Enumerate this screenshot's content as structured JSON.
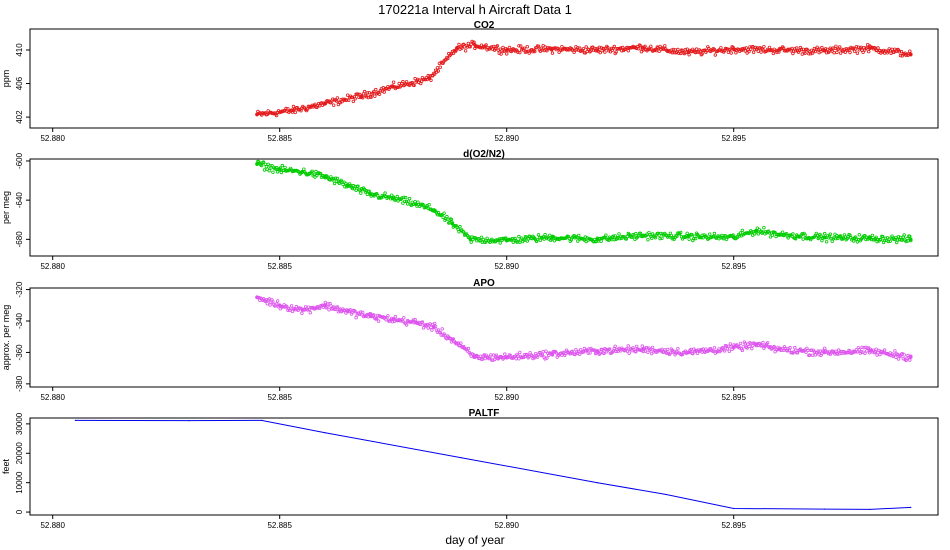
{
  "figure": {
    "title": "170221a   Interval h Aircraft Data 1",
    "xlabel": "day of year"
  },
  "chart_data": [
    {
      "type": "scatter",
      "title": "CO2",
      "ylabel": "ppm",
      "color": "#e41a1c",
      "xlim": [
        52.8795,
        52.8995
      ],
      "ylim": [
        400.7,
        412.5
      ],
      "x_ticks": [
        "52.880",
        "52.885",
        "52.890",
        "52.895"
      ],
      "y_ticks": [
        "402",
        "406",
        "410"
      ],
      "grid": false,
      "series": [
        {
          "x": [
            52.8845,
            52.8853,
            52.886,
            52.8868,
            52.8875,
            52.8883,
            52.8889,
            52.8893,
            52.89,
            52.891,
            52.892,
            52.893,
            52.894,
            52.895,
            52.896,
            52.897,
            52.898,
            52.8989
          ],
          "y": [
            402.3,
            402.8,
            403.6,
            404.5,
            405.6,
            406.6,
            410.2,
            410.6,
            410.0,
            410.1,
            410.0,
            410.3,
            409.7,
            410.1,
            410.0,
            409.9,
            410.2,
            409.5
          ]
        }
      ]
    },
    {
      "type": "scatter",
      "title": "d(O2/N2)",
      "ylabel": "per meg",
      "color": "#00cc00",
      "xlim": [
        52.8795,
        52.8995
      ],
      "ylim": [
        -697,
        -598
      ],
      "x_ticks": [
        "52.880",
        "52.885",
        "52.890",
        "52.895"
      ],
      "y_ticks": [
        "-600",
        "-640",
        "-680"
      ],
      "grid": false,
      "series": [
        {
          "x": [
            52.8845,
            52.885,
            52.8855,
            52.886,
            52.8865,
            52.887,
            52.8875,
            52.888,
            52.8884,
            52.8888,
            52.8892,
            52.89,
            52.891,
            52.892,
            52.893,
            52.894,
            52.895,
            52.8955,
            52.896,
            52.897,
            52.898,
            52.8989
          ],
          "y": [
            -603,
            -609,
            -611,
            -616,
            -625,
            -634,
            -638,
            -644,
            -650,
            -664,
            -680,
            -681,
            -678,
            -680,
            -676,
            -677,
            -678,
            -671,
            -675,
            -678,
            -679,
            -680
          ]
        }
      ]
    },
    {
      "type": "scatter",
      "title": "APO",
      "ylabel": "approx. per meg",
      "color": "#dd55ee",
      "xlim": [
        52.8795,
        52.8995
      ],
      "ylim": [
        -382,
        -319
      ],
      "x_ticks": [
        "52.880",
        "52.885",
        "52.890",
        "52.895"
      ],
      "y_ticks": [
        "-320",
        "-340",
        "-360",
        "-380"
      ],
      "grid": false,
      "series": [
        {
          "x": [
            52.8845,
            52.885,
            52.8855,
            52.886,
            52.8865,
            52.887,
            52.8875,
            52.888,
            52.8884,
            52.8888,
            52.8893,
            52.89,
            52.891,
            52.892,
            52.893,
            52.894,
            52.895,
            52.8955,
            52.896,
            52.897,
            52.898,
            52.8989
          ],
          "y": [
            -325,
            -330,
            -333,
            -330,
            -334,
            -337,
            -339,
            -341,
            -344,
            -352,
            -363,
            -363,
            -361,
            -359,
            -358,
            -360,
            -357,
            -355,
            -358,
            -360,
            -359,
            -363
          ]
        }
      ]
    },
    {
      "type": "line",
      "title": "PALTF",
      "ylabel": "feet",
      "color": "#0000ee",
      "xlim": [
        52.8795,
        52.8995
      ],
      "ylim": [
        -1000,
        32000
      ],
      "x_ticks": [
        "52.880",
        "52.885",
        "52.890",
        "52.895"
      ],
      "y_ticks": [
        "0",
        "10000",
        "20000",
        "30000"
      ],
      "grid": false,
      "series": [
        {
          "x": [
            52.8805,
            52.883,
            52.8846,
            52.886,
            52.889,
            52.892,
            52.8935,
            52.895,
            52.897,
            52.898,
            52.8989
          ],
          "y": [
            31200,
            31100,
            31200,
            27000,
            18500,
            10000,
            6000,
            1200,
            1000,
            900,
            1600
          ]
        }
      ]
    }
  ]
}
